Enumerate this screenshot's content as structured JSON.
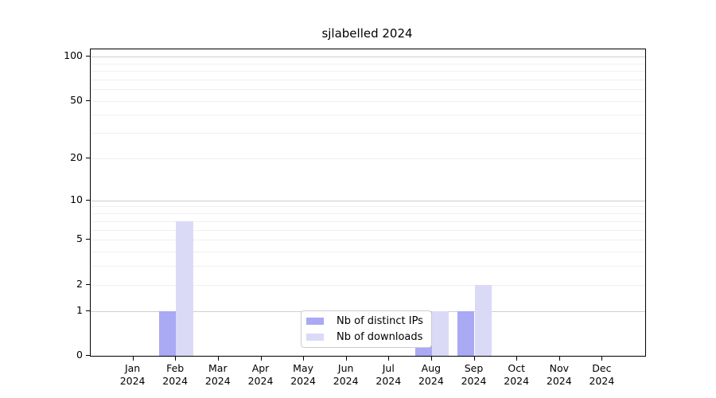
{
  "chart_data": {
    "type": "bar",
    "title": "sjlabelled 2024",
    "categories": [
      "Jan",
      "Feb",
      "Mar",
      "Apr",
      "May",
      "Jun",
      "Jul",
      "Aug",
      "Sep",
      "Oct",
      "Nov",
      "Dec"
    ],
    "category_year_label": "2024",
    "series": [
      {
        "name": "Nb of distinct IPs",
        "color": "#a9a9f4",
        "values": [
          0,
          1,
          0,
          0,
          0,
          0,
          0,
          1,
          1,
          0,
          0,
          0
        ]
      },
      {
        "name": "Nb of downloads",
        "color": "#dadaf7",
        "values": [
          0,
          7,
          0,
          0,
          0,
          0,
          0,
          1,
          2,
          0,
          0,
          0
        ]
      }
    ],
    "y_ticks": [
      0,
      1,
      2,
      5,
      10,
      20,
      50,
      100
    ],
    "y_scale": "log10(1+y)",
    "ylim": [
      0,
      112
    ],
    "grid": {
      "major_values": [
        1,
        10,
        100
      ],
      "minor_values": [
        2,
        3,
        4,
        5,
        6,
        7,
        8,
        9,
        20,
        30,
        40,
        50,
        60,
        70,
        80,
        90
      ],
      "major_color": "#cfcfcf",
      "minor_color": "#f0f0f0"
    },
    "legend": {
      "position": "lower center",
      "border_color": "#cccccc",
      "background": "#ffffff"
    },
    "colors": {
      "spine": "#000000",
      "text": "#000000",
      "background": "#ffffff"
    }
  }
}
